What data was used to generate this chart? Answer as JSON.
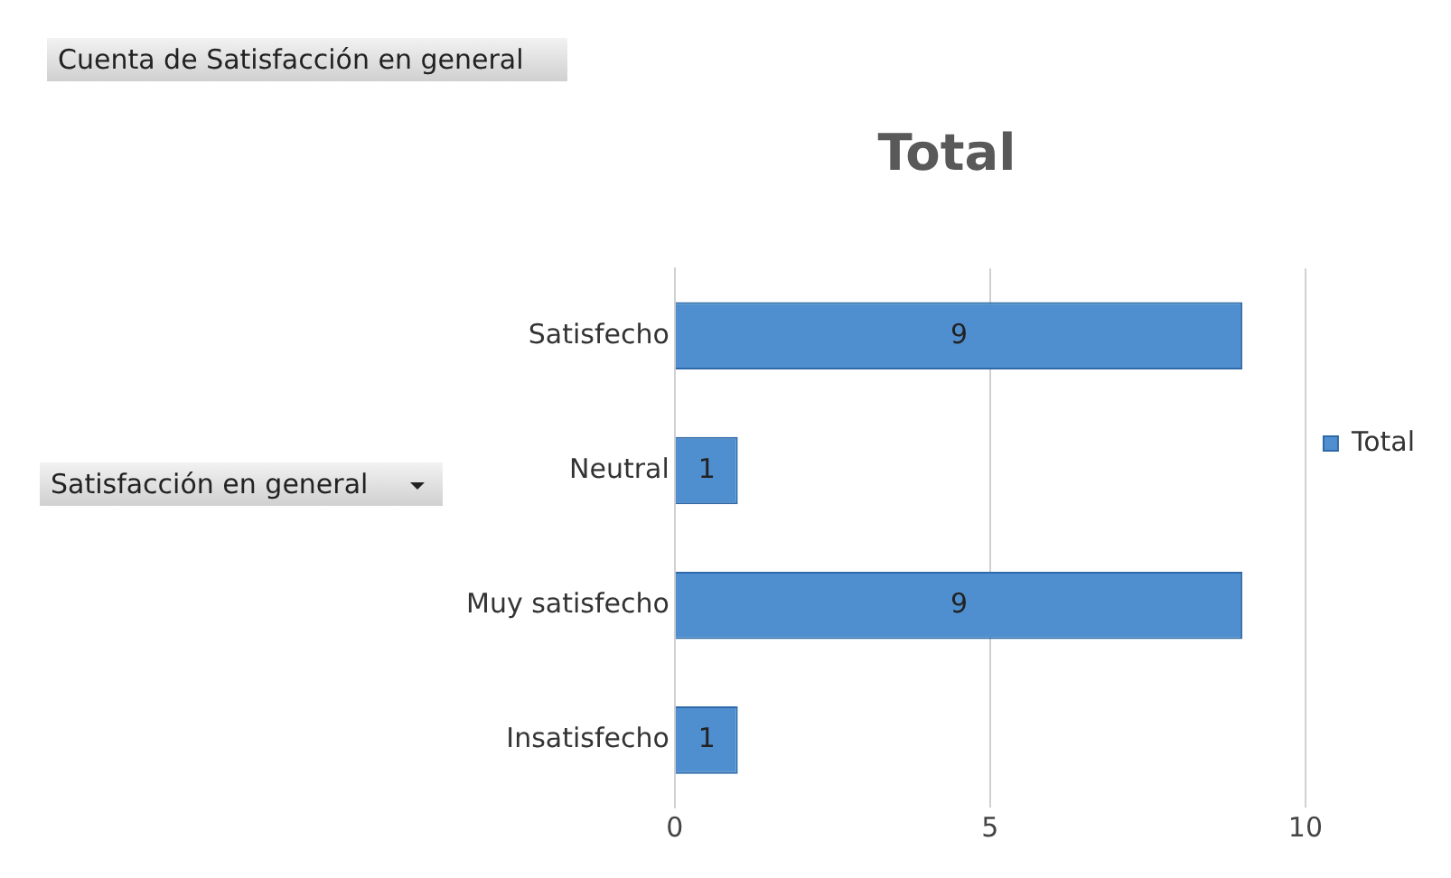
{
  "chart_data": {
    "type": "bar",
    "orientation": "horizontal",
    "title": "Total",
    "categories": [
      "Satisfecho",
      "Neutral",
      "Muy satisfecho",
      "Insatisfecho"
    ],
    "series": [
      {
        "name": "Total",
        "color": "#4f8fd0",
        "values": [
          9,
          1,
          9,
          1
        ]
      }
    ],
    "xlim": [
      0,
      10
    ],
    "xticks": [
      0,
      5,
      10
    ],
    "grid": "x",
    "legend": "right",
    "data_labels": true,
    "annotations": [
      "Cuenta de Satisfacción en general",
      "Satisfacción en general"
    ]
  }
}
